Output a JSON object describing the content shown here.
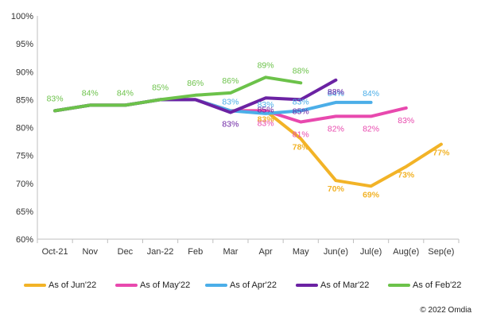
{
  "chart_data": {
    "type": "line",
    "categories": [
      "Oct-21",
      "Nov",
      "Dec",
      "Jan-22",
      "Feb",
      "Mar",
      "Apr",
      "May",
      "Jun(e)",
      "Jul(e)",
      "Aug(e)",
      "Sep(e)"
    ],
    "ylim": [
      60,
      100
    ],
    "yticks": [
      "60%",
      "65%",
      "70%",
      "75%",
      "80%",
      "85%",
      "90%",
      "95%",
      "100%"
    ],
    "grid": false,
    "legend_position": "bottom",
    "series": [
      {
        "name": "As of Jun'22",
        "color": "#F2B327",
        "values": [
          83,
          84,
          84,
          85,
          85,
          83,
          83,
          78,
          70.5,
          69.5,
          73,
          77
        ],
        "labels": [
          null,
          null,
          null,
          null,
          null,
          null,
          "83%",
          "78%",
          "70%",
          "69%",
          "73%",
          "77%"
        ]
      },
      {
        "name": "As of May'22",
        "color": "#E849AE",
        "values": [
          83,
          84,
          84,
          85,
          85,
          83,
          83,
          81,
          82,
          82,
          83.5,
          null
        ],
        "labels": [
          null,
          null,
          null,
          null,
          null,
          null,
          "83%",
          "81%",
          "82%",
          "82%",
          "83%",
          null
        ]
      },
      {
        "name": "As of Apr'22",
        "color": "#4BAEE8",
        "values": [
          83,
          84,
          84,
          85,
          85,
          83,
          82.5,
          83,
          84.5,
          84.5,
          null,
          null
        ],
        "labels": [
          null,
          null,
          null,
          null,
          null,
          "83%",
          "83%",
          "83%",
          "84%",
          "84%",
          null,
          null
        ]
      },
      {
        "name": "As of Mar'22",
        "color": "#6B22A3",
        "values": [
          83,
          84,
          84,
          85,
          85,
          82.7,
          85.3,
          85,
          88.5,
          null,
          null,
          null
        ],
        "labels": [
          null,
          null,
          null,
          null,
          null,
          "83%",
          "85%",
          "85%",
          "88%",
          null,
          null,
          null
        ]
      },
      {
        "name": "As of Feb'22",
        "color": "#6CC24A",
        "values": [
          83,
          84,
          84,
          85,
          85.8,
          86.2,
          89,
          88,
          null,
          null,
          null,
          null
        ],
        "labels": [
          "83%",
          "84%",
          "84%",
          "85%",
          "86%",
          "86%",
          "89%",
          "88%",
          null,
          null,
          null,
          null
        ]
      }
    ]
  },
  "copyright": "© 2022 Omdia"
}
